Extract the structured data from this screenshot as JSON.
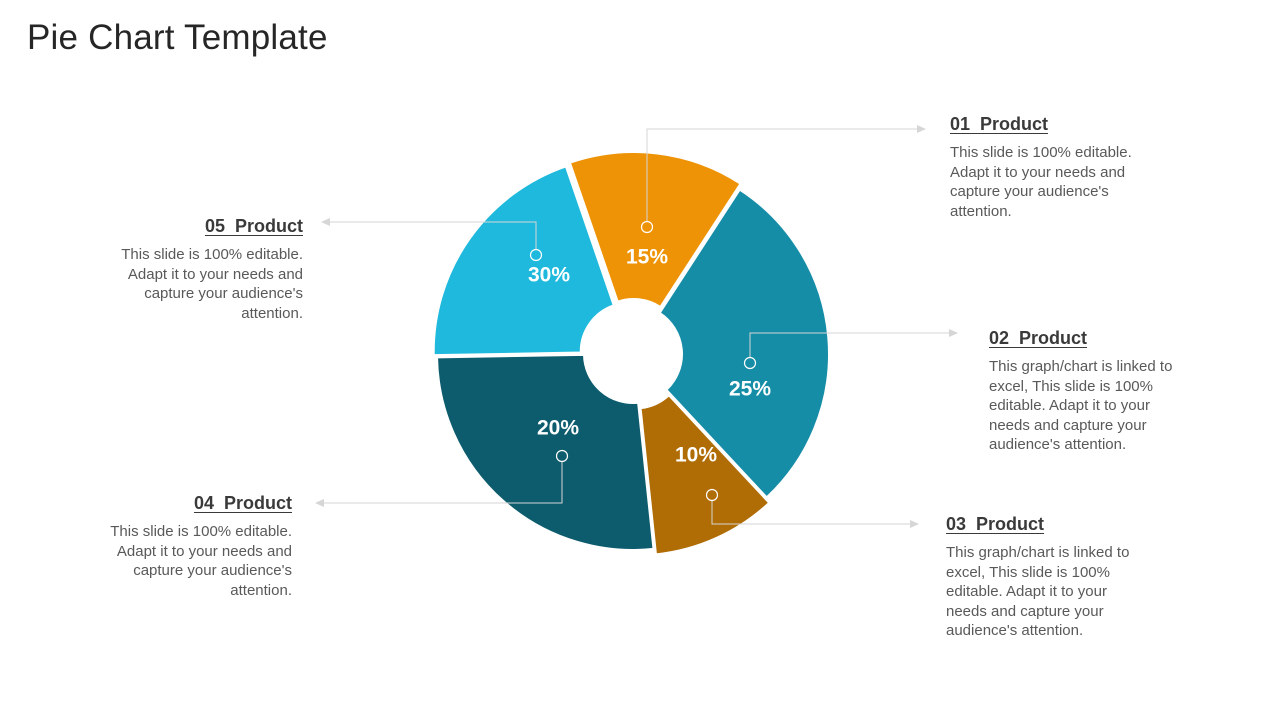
{
  "title": "Pie Chart Template",
  "chart_data": {
    "type": "pie",
    "donut": true,
    "slices": [
      {
        "key": "p01",
        "label": "01  Product",
        "value_label": "15%",
        "value": 15,
        "color": "#EE9305"
      },
      {
        "key": "p02",
        "label": "02  Product",
        "value_label": "25%",
        "value": 25,
        "color": "#168DA7"
      },
      {
        "key": "p03",
        "label": "03  Product",
        "value_label": "10%",
        "value": 10,
        "color": "#B06C05"
      },
      {
        "key": "p04",
        "label": "04  Product",
        "value_label": "20%",
        "value": 20,
        "color": "#0D5C6E"
      },
      {
        "key": "p05",
        "label": "05  Product",
        "value_label": "30%",
        "value": 30,
        "color": "#1EB9DC"
      }
    ]
  },
  "callouts": {
    "p01": {
      "heading": "01  Product",
      "body": "This slide is 100% editable. Adapt it to your needs and capture your audience's attention."
    },
    "p02": {
      "heading": "02  Product",
      "body": "This graph/chart  is linked to excel, This slide is 100% editable. Adapt it to your needs and capture your audience's attention."
    },
    "p03": {
      "heading": "03  Product",
      "body": "This graph/chart  is linked to excel, This slide is 100% editable. Adapt it to your needs and capture your audience's attention."
    },
    "p04": {
      "heading": "04  Product",
      "body": "This slide is 100% editable. Adapt it to your needs and capture your audience's attention."
    },
    "p05": {
      "heading": "05  Product",
      "body": "This slide is 100% editable. Adapt it to your needs and capture your audience's attention."
    }
  }
}
